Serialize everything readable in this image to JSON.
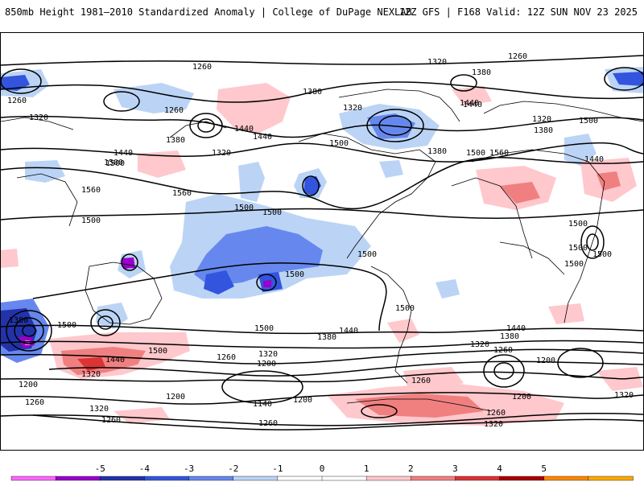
{
  "header": {
    "title": "850mb Height 1981–2010 Standardized Anomaly | College of DuPage NEXLAB",
    "run_info": "12Z GFS | F168 Valid: 12Z SUN NOV 23 2025"
  },
  "map": {
    "contour_labels": [
      "1260",
      "1320",
      "1380",
      "1440",
      "1500",
      "1560",
      "1200",
      "1140"
    ],
    "labels": {
      "l1260a": "1260",
      "l1320a": "1320",
      "l1260b": "1260",
      "l1380a": "1380",
      "l1260c": "1260",
      "l1320b": "1320",
      "l1260d": "1260",
      "l1380b": "1380",
      "l1440a": "1440",
      "l1440b": "1440",
      "l1320c": "1320",
      "l1440c": "1440",
      "l1500a": "1500",
      "l1560a": "1560",
      "l1560b": "1560",
      "l1500b": "1500",
      "l1500c": "1500",
      "l1500d": "1500",
      "l1320d": "1320",
      "l1380c": "1380",
      "l1440d": "1440",
      "l1500e": "1500",
      "l1380d": "1380",
      "l1500f": "1500",
      "l1560c": "1560",
      "l1320e": "1320",
      "l1380e": "1380",
      "l1500g": "1500",
      "l1440e": "1440",
      "l1500h": "1500",
      "l1500i": "1500",
      "l1500j": "1500",
      "l1500k": "1500",
      "l1500l": "1500",
      "l1380f": "1380",
      "l1500m": "1500",
      "l1440f": "1440",
      "l1500n": "1500",
      "l1380g": "1380",
      "l1440g": "1440",
      "l1320f": "1320",
      "l1500o": "1500",
      "l1440h": "1440",
      "l1380h": "1380",
      "l1320g": "1320",
      "l1260e": "1260",
      "l1200a": "1200",
      "l1320h": "1320",
      "l1260f": "1260",
      "l1200b": "1200",
      "l1320i": "1320",
      "l1200c": "1200",
      "l1140a": "1140",
      "l1200d": "1200",
      "l1260g": "1260",
      "l1260h": "1260",
      "l1320j": "1320",
      "l1320k": "1320",
      "l1260i": "1260",
      "l1260j": "1260",
      "l1200e": "1200",
      "l1320l": "1320",
      "l1380i": "1380",
      "l1320m": "1320",
      "l1260k": "1260",
      "l1500p": "1500",
      "l1500q": "1500",
      "l1500r": "1500"
    }
  },
  "colorbar": {
    "ticks": [
      "-5",
      "-4",
      "-3",
      "-2",
      "-1",
      "0",
      "1",
      "2",
      "3",
      "4",
      "5"
    ],
    "tick_values": [
      -5,
      -4,
      -3,
      -2,
      -1,
      0,
      1,
      2,
      3,
      4,
      5
    ],
    "colors": [
      "#ff66ff",
      "#9900cc",
      "#2233aa",
      "#3355dd",
      "#6688ee",
      "#bbd4f5",
      "#ffffff",
      "#ffffff",
      "#ffc8cc",
      "#f08080",
      "#dd3333",
      "#aa0000",
      "#ff8800",
      "#ffaa00"
    ]
  }
}
